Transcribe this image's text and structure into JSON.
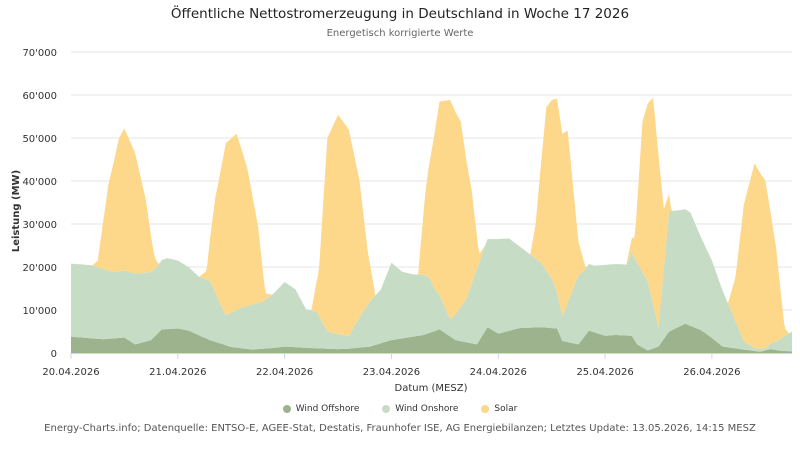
{
  "chart_data": {
    "type": "area",
    "stacked": true,
    "title": "Öffentliche Nettostromerzeugung in Deutschland in Woche 17 2026",
    "subtitle": "Energetisch korrigierte Werte",
    "xlabel": "Datum (MESZ)",
    "ylabel": "Leistung (MW)",
    "ylim": [
      0,
      70000
    ],
    "y_ticks": [
      0,
      10000,
      20000,
      30000,
      40000,
      50000,
      60000,
      70000
    ],
    "y_tick_labels": [
      "0",
      "10'000",
      "20'000",
      "30'000",
      "40'000",
      "50'000",
      "60'000",
      "70'000"
    ],
    "x_range_days": [
      0,
      6.75
    ],
    "x_tick_labels": [
      "20.04.2026",
      "21.04.2026",
      "22.04.2026",
      "23.04.2026",
      "24.04.2026",
      "25.04.2026",
      "26.04.2026"
    ],
    "grid": true,
    "legend_position": "bottom",
    "series": [
      {
        "name": "Wind Offshore",
        "color": "#9db38e",
        "points": [
          [
            0.0,
            3800
          ],
          [
            0.3,
            3200
          ],
          [
            0.5,
            3600
          ],
          [
            0.6,
            2000
          ],
          [
            0.75,
            3000
          ],
          [
            0.85,
            5500
          ],
          [
            1.0,
            5700
          ],
          [
            1.1,
            5200
          ],
          [
            1.3,
            3000
          ],
          [
            1.5,
            1400
          ],
          [
            1.7,
            800
          ],
          [
            1.9,
            1200
          ],
          [
            2.0,
            1500
          ],
          [
            2.2,
            1200
          ],
          [
            2.5,
            900
          ],
          [
            2.6,
            1000
          ],
          [
            2.8,
            1500
          ],
          [
            3.0,
            3000
          ],
          [
            3.3,
            4200
          ],
          [
            3.45,
            5500
          ],
          [
            3.6,
            3000
          ],
          [
            3.8,
            2000
          ],
          [
            3.9,
            6000
          ],
          [
            4.0,
            4500
          ],
          [
            4.2,
            5800
          ],
          [
            4.4,
            6000
          ],
          [
            4.55,
            5700
          ],
          [
            4.6,
            2800
          ],
          [
            4.75,
            2000
          ],
          [
            4.85,
            5200
          ],
          [
            5.0,
            4000
          ],
          [
            5.1,
            4200
          ],
          [
            5.25,
            4000
          ],
          [
            5.3,
            2000
          ],
          [
            5.4,
            600
          ],
          [
            5.5,
            1500
          ],
          [
            5.6,
            5000
          ],
          [
            5.75,
            6800
          ],
          [
            5.9,
            5300
          ],
          [
            6.0,
            3500
          ],
          [
            6.1,
            1500
          ],
          [
            6.3,
            800
          ],
          [
            6.45,
            300
          ],
          [
            6.55,
            900
          ],
          [
            6.65,
            500
          ],
          [
            6.75,
            400
          ]
        ]
      },
      {
        "name": "Wind Onshore",
        "color": "#c6dcc4",
        "points": [
          [
            0.0,
            17000
          ],
          [
            0.2,
            17000
          ],
          [
            0.3,
            16300
          ],
          [
            0.4,
            15500
          ],
          [
            0.5,
            15600
          ],
          [
            0.6,
            16500
          ],
          [
            0.7,
            16000
          ],
          [
            0.8,
            15700
          ],
          [
            0.9,
            16500
          ],
          [
            1.0,
            15800
          ],
          [
            1.1,
            14800
          ],
          [
            1.2,
            13600
          ],
          [
            1.3,
            13800
          ],
          [
            1.4,
            9000
          ],
          [
            1.45,
            7000
          ],
          [
            1.5,
            8000
          ],
          [
            1.6,
            9500
          ],
          [
            1.7,
            10500
          ],
          [
            1.8,
            11000
          ],
          [
            1.9,
            12700
          ],
          [
            2.0,
            15000
          ],
          [
            2.1,
            13500
          ],
          [
            2.2,
            9000
          ],
          [
            2.3,
            8500
          ],
          [
            2.4,
            4000
          ],
          [
            2.5,
            3500
          ],
          [
            2.6,
            3000
          ],
          [
            2.7,
            7000
          ],
          [
            2.8,
            10500
          ],
          [
            2.9,
            12500
          ],
          [
            3.0,
            18000
          ],
          [
            3.1,
            15500
          ],
          [
            3.2,
            14500
          ],
          [
            3.3,
            14000
          ],
          [
            3.35,
            13000
          ],
          [
            3.4,
            10000
          ],
          [
            3.55,
            4000
          ],
          [
            3.7,
            10000
          ],
          [
            3.8,
            17500
          ],
          [
            3.9,
            20500
          ],
          [
            4.0,
            22000
          ],
          [
            4.1,
            21500
          ],
          [
            4.2,
            19000
          ],
          [
            4.3,
            17000
          ],
          [
            4.4,
            15000
          ],
          [
            4.5,
            11500
          ],
          [
            4.55,
            8500
          ],
          [
            4.6,
            5700
          ],
          [
            4.75,
            16000
          ],
          [
            4.8,
            15500
          ],
          [
            4.9,
            15500
          ],
          [
            5.0,
            16500
          ],
          [
            5.1,
            16500
          ],
          [
            5.2,
            16500
          ],
          [
            5.25,
            19500
          ],
          [
            5.3,
            19000
          ],
          [
            5.4,
            16000
          ],
          [
            5.5,
            4500
          ],
          [
            5.6,
            28000
          ],
          [
            5.7,
            27000
          ],
          [
            5.8,
            26300
          ],
          [
            5.9,
            21500
          ],
          [
            6.0,
            18000
          ],
          [
            6.1,
            13000
          ],
          [
            6.2,
            7500
          ],
          [
            6.3,
            1800
          ],
          [
            6.4,
            700
          ],
          [
            6.5,
            500
          ],
          [
            6.6,
            2000
          ],
          [
            6.75,
            4600
          ]
        ]
      },
      {
        "name": "Solar",
        "color": "#fdd78a",
        "points": [
          [
            0.0,
            0
          ],
          [
            0.2,
            0
          ],
          [
            0.25,
            1500
          ],
          [
            0.35,
            20000
          ],
          [
            0.45,
            31000
          ],
          [
            0.5,
            33000
          ],
          [
            0.6,
            28000
          ],
          [
            0.7,
            17000
          ],
          [
            0.78,
            3000
          ],
          [
            0.82,
            0
          ],
          [
            1.2,
            0
          ],
          [
            1.27,
            2000
          ],
          [
            1.35,
            22000
          ],
          [
            1.45,
            40000
          ],
          [
            1.55,
            41000
          ],
          [
            1.65,
            32000
          ],
          [
            1.75,
            18000
          ],
          [
            1.82,
            1500
          ],
          [
            1.88,
            0
          ],
          [
            2.25,
            0
          ],
          [
            2.32,
            10000
          ],
          [
            2.4,
            45000
          ],
          [
            2.5,
            51000
          ],
          [
            2.6,
            48000
          ],
          [
            2.7,
            32000
          ],
          [
            2.78,
            12000
          ],
          [
            2.85,
            0
          ],
          [
            3.25,
            0
          ],
          [
            3.32,
            20000
          ],
          [
            3.45,
            45000
          ],
          [
            3.55,
            51000
          ],
          [
            3.65,
            43000
          ],
          [
            3.75,
            22000
          ],
          [
            3.82,
            2000
          ],
          [
            3.88,
            0
          ],
          [
            4.3,
            0
          ],
          [
            4.35,
            8000
          ],
          [
            4.45,
            38000
          ],
          [
            4.55,
            45000
          ],
          [
            4.65,
            40000
          ],
          [
            4.75,
            8000
          ],
          [
            4.82,
            0
          ],
          [
            5.2,
            0
          ],
          [
            5.28,
            5000
          ],
          [
            5.35,
            35000
          ],
          [
            5.45,
            48000
          ],
          [
            5.5,
            40000
          ],
          [
            5.55,
            14000
          ],
          [
            5.62,
            0
          ],
          [
            6.15,
            0
          ],
          [
            6.22,
            10000
          ],
          [
            6.3,
            32000
          ],
          [
            6.4,
            43000
          ],
          [
            6.5,
            39000
          ],
          [
            6.6,
            22000
          ],
          [
            6.68,
            2000
          ],
          [
            6.72,
            0
          ],
          [
            6.75,
            0
          ]
        ]
      }
    ]
  },
  "credits": "Energy-Charts.info; Datenquelle: ENTSO-E, AGEE-Stat, Destatis, Fraunhofer ISE, AG Energiebilanzen; Letztes Update: 13.05.2026, 14:15 MESZ"
}
